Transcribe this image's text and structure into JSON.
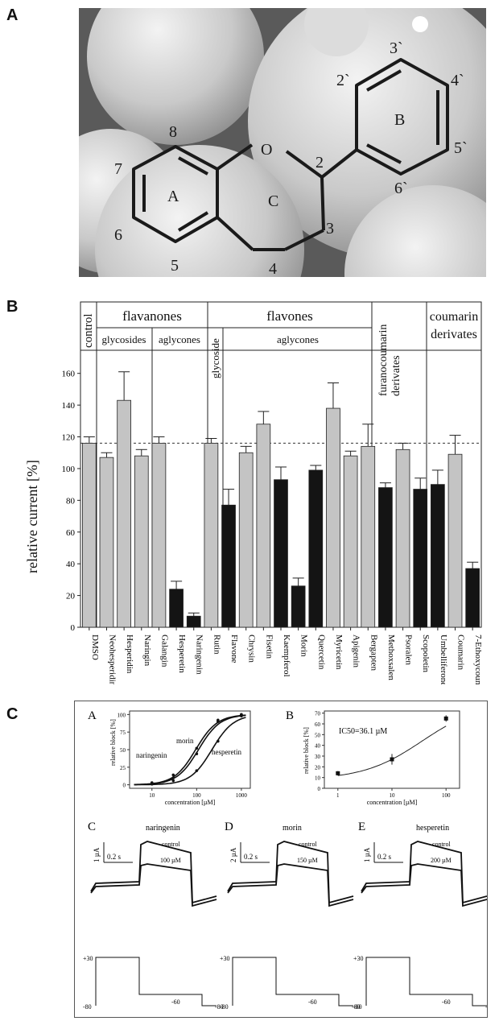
{
  "panels": {
    "a": "A",
    "b": "B",
    "c": "C"
  },
  "structure": {
    "atoms": [
      "8",
      "7",
      "6",
      "5",
      "4",
      "3",
      "2",
      "O",
      "2`",
      "3`",
      "4`",
      "5`",
      "6`"
    ],
    "rings": [
      "A",
      "B",
      "C"
    ]
  },
  "chart_data": {
    "type": "bar",
    "ylabel": "relative current [%]",
    "ylim": [
      0,
      170
    ],
    "yticks": [
      0,
      20,
      40,
      60,
      80,
      100,
      120,
      140,
      160
    ],
    "reference_line": 116,
    "groups": {
      "control": "control",
      "flavanones": "flavanones",
      "flavanone_glycosides": "glycosides",
      "flavanone_aglycones": "aglycones",
      "flavones": "flavones",
      "flavone_glycoside": "glycoside",
      "flavone_aglycones": "aglycones",
      "furanocoumarin": [
        "furanocoumarin",
        "derivates"
      ],
      "coumarin": [
        "coumarin",
        "derivates"
      ]
    },
    "categories": [
      "DMSO",
      "Neohesperidin",
      "Hesperidin",
      "Naringin",
      "Galangin",
      "Hesperetin",
      "Naringenin",
      "Rutin",
      "Flavone",
      "Chrysin",
      "Fisetin",
      "Kaempferol",
      "Morin",
      "Quercetin",
      "Myricetin",
      "Apigenin",
      "Bergapten",
      "Methoxsalen",
      "Psoralen",
      "Scopoletin",
      "Umbelliferone",
      "Coumarin",
      "7-Ethoxycoumarin"
    ],
    "values": [
      116,
      107,
      143,
      108,
      116,
      24,
      7,
      116,
      77,
      110,
      128,
      93,
      26,
      99,
      138,
      108,
      114,
      88,
      112,
      87,
      90,
      109,
      37
    ],
    "errors": [
      4,
      3,
      18,
      4,
      4,
      5,
      2,
      3,
      10,
      4,
      8,
      8,
      5,
      3,
      16,
      3,
      14,
      3,
      4,
      7,
      9,
      12,
      4
    ],
    "significant": [
      false,
      false,
      false,
      false,
      false,
      true,
      true,
      false,
      true,
      false,
      false,
      true,
      true,
      true,
      false,
      false,
      false,
      true,
      false,
      true,
      true,
      false,
      true
    ],
    "colors": {
      "light": "#c4c4c4",
      "dark": "#141414"
    }
  },
  "dose_response": {
    "label": "A",
    "ylabel": "relative block [%]",
    "xlabel": "concentration [µM]",
    "yticks": [
      0,
      25,
      50,
      75,
      100
    ],
    "xticks": [
      "10",
      "100",
      "1000"
    ],
    "series": [
      {
        "name": "morin",
        "x": [
          10,
          30,
          100,
          300,
          1000
        ],
        "y": [
          2,
          10,
          44,
          90,
          100
        ],
        "ec50": 110
      },
      {
        "name": "naringenin",
        "x": [
          10,
          30,
          100,
          300,
          1000
        ],
        "y": [
          3,
          14,
          52,
          92,
          100
        ],
        "ec50": 95
      },
      {
        "name": "hesperetin",
        "x": [
          10,
          30,
          100,
          300,
          1000
        ],
        "y": [
          1,
          6,
          20,
          62,
          98
        ],
        "ec50": 220
      }
    ]
  },
  "ic50_plot": {
    "label": "B",
    "ylabel": "relative block [%]",
    "xlabel": "concentration [µM]",
    "annotation": "IC50=36.1 µM",
    "yticks": [
      0,
      10,
      20,
      30,
      40,
      50,
      60,
      70
    ],
    "xticks": [
      "1",
      "10",
      "100"
    ],
    "points": [
      {
        "x": 1,
        "y": 14,
        "err": 2
      },
      {
        "x": 10,
        "y": 27,
        "err": 5
      },
      {
        "x": 100,
        "y": 65,
        "err": 3
      }
    ]
  },
  "traces": [
    {
      "label": "C",
      "compound": "naringenin",
      "scale": "1 µA",
      "time": "0.2 s",
      "control": "control",
      "dose": "100 µM"
    },
    {
      "label": "D",
      "compound": "morin",
      "scale": "2 µA",
      "time": "0.2 s",
      "control": "control",
      "dose": "150 µM"
    },
    {
      "label": "E",
      "compound": "hesperetin",
      "scale": "1 µA",
      "time": "0.2 s",
      "control": "control",
      "dose": "200 µM"
    }
  ],
  "protocol": {
    "v1": "+30",
    "v2": "-80",
    "v3": "-60",
    "v4": "-80"
  }
}
